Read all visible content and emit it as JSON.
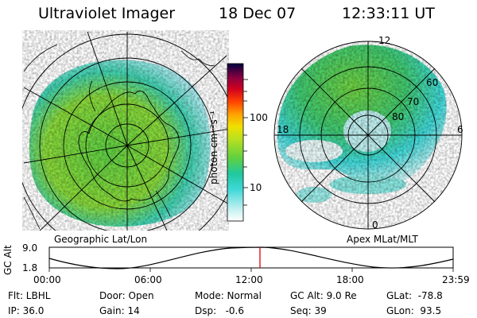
{
  "header": {
    "instrument": "Ultraviolet Imager",
    "date": "18 Dec 07",
    "time": "12:33:11 UT"
  },
  "colorbar": {
    "unit_label": "photon cm⁻²s⁻¹",
    "ticks": [
      "100",
      "10"
    ],
    "scale": "log",
    "colors": [
      "#ffffff",
      "#bfeff0",
      "#40d8d8",
      "#20c8a0",
      "#60d040",
      "#b8e020",
      "#f0e000",
      "#ffa000",
      "#ff4000",
      "#d00020",
      "#8a0040",
      "#400040",
      "#000040"
    ]
  },
  "left_map": {
    "caption": "Geographic Lat/Lon"
  },
  "right_map": {
    "caption": "Apex MLat/MLT",
    "clock_labels": {
      "top": "12",
      "left": "18",
      "right": "6",
      "bottom": "0"
    },
    "lat_labels": [
      "60",
      "70",
      "80"
    ]
  },
  "altitude_plot": {
    "ylabel": "GC Alt",
    "yticks": [
      "9.0",
      "1.8"
    ],
    "xticks": [
      "00:00",
      "06:00",
      "12:00",
      "18:00",
      "23:59"
    ],
    "marker_time": "12:33:11",
    "marker_color": "#e00000"
  },
  "status": {
    "filter": "Flt: LBHL",
    "ip": "IP: 36.0",
    "door": "Door: Open",
    "gain": "Gain: 14",
    "mode": "Mode: Normal",
    "dsp": "Dsp:   -0.6",
    "gc_alt": "GC Alt: 9.0 Re",
    "seq": "Seq: 39",
    "glat": "GLat:  -78.8",
    "glon": "GLon:  93.5"
  }
}
